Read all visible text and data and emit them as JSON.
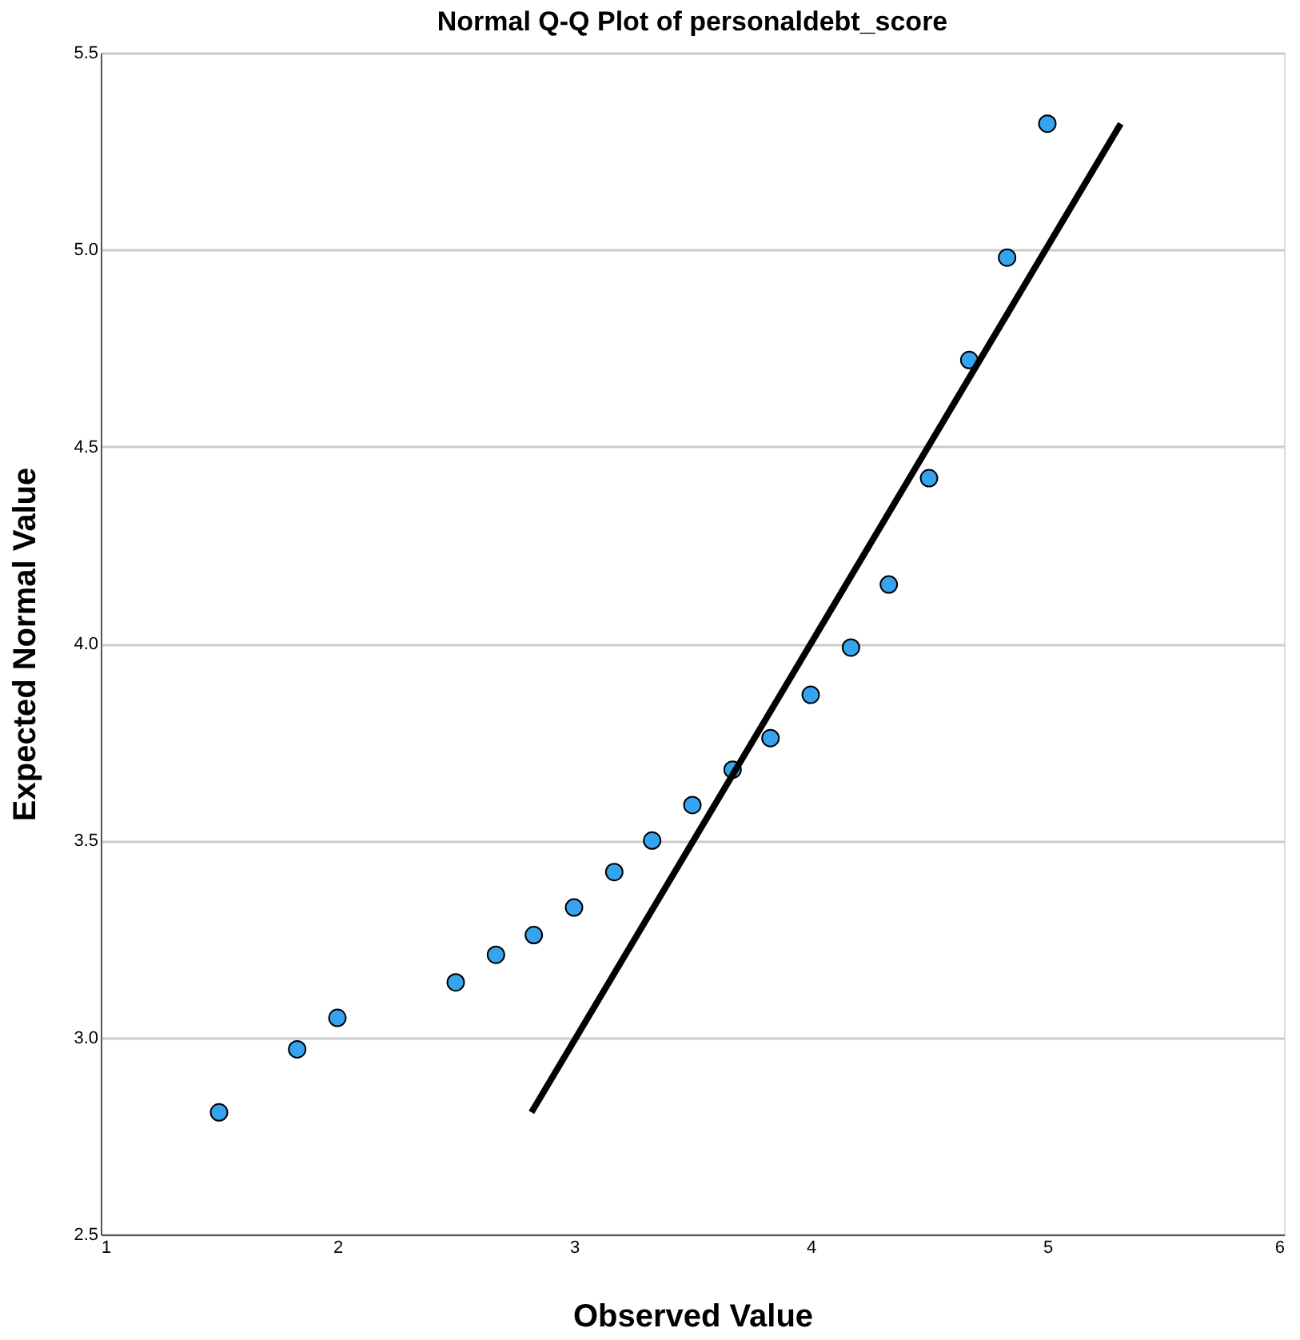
{
  "chart_data": {
    "type": "scatter",
    "title": "Normal Q-Q Plot of personaldebt_score",
    "xlabel": "Observed Value",
    "ylabel": "Expected Normal Value",
    "xlim": [
      1,
      6
    ],
    "xticks": [
      1,
      2,
      3,
      4,
      5,
      6
    ],
    "ylim": [
      2.5,
      5.5
    ],
    "yticks": [
      {
        "value": 2.5,
        "label": "2.5"
      },
      {
        "value": 3.0,
        "label": "3.0"
      },
      {
        "value": 3.5,
        "label": "3.5"
      },
      {
        "value": 4.0,
        "label": "4.0"
      },
      {
        "value": 4.5,
        "label": "4.5"
      },
      {
        "value": 5.0,
        "label": "5.0"
      },
      {
        "value": 5.5,
        "label": "5.5"
      }
    ],
    "grid": "y",
    "series": [
      {
        "marker": "circle",
        "color": "#36a3ef",
        "x": [
          1.5,
          1.83,
          2.0,
          2.5,
          2.67,
          2.83,
          3.0,
          3.17,
          3.33,
          3.5,
          3.67,
          3.83,
          4.0,
          4.17,
          4.33,
          4.5,
          4.67,
          4.83,
          5.0
        ],
        "values": [
          2.81,
          2.97,
          3.05,
          3.14,
          3.21,
          3.26,
          3.33,
          3.42,
          3.5,
          3.59,
          3.68,
          3.76,
          3.87,
          3.99,
          4.15,
          4.42,
          4.72,
          4.98,
          5.32
        ]
      },
      {
        "type": "line",
        "color": "#000000",
        "x": [
          2.82,
          5.31
        ],
        "values": [
          2.81,
          5.32
        ]
      }
    ]
  }
}
